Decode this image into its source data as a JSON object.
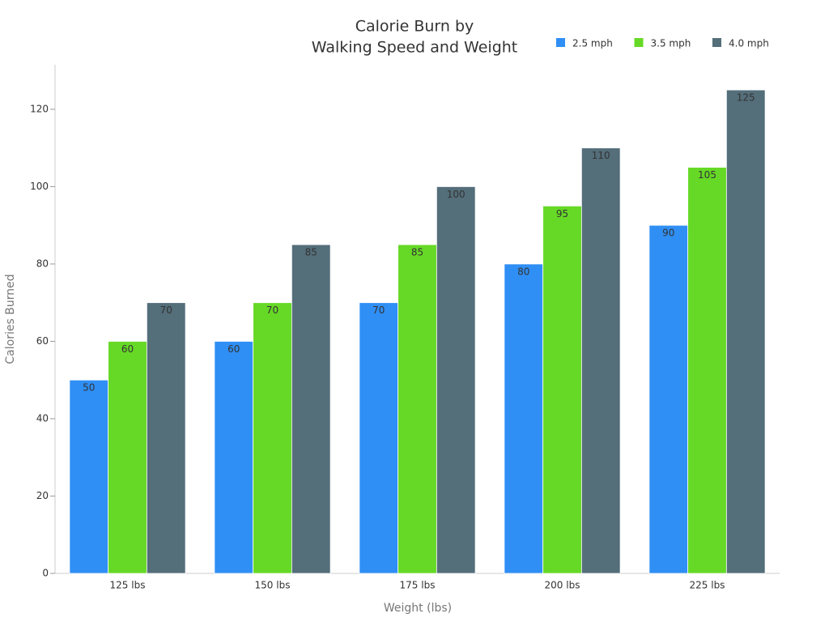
{
  "chart_data": {
    "type": "bar",
    "title": [
      "Calorie Burn by",
      "Walking Speed and Weight"
    ],
    "x_label": "Weight (lbs)",
    "y_label": "Calories Burned",
    "categories": [
      "125 lbs",
      "150 lbs",
      "175 lbs",
      "200 lbs",
      "225 lbs"
    ],
    "series": [
      {
        "name": "2.5 mph",
        "color": "#2f8ff5",
        "values": [
          50,
          60,
          70,
          80,
          90
        ]
      },
      {
        "name": "3.5 mph",
        "color": "#66d926",
        "values": [
          60,
          70,
          85,
          95,
          105
        ]
      },
      {
        "name": "4.0 mph",
        "color": "#546e7a",
        "values": [
          70,
          85,
          100,
          110,
          125
        ]
      }
    ],
    "ylim": [
      0,
      131.5
    ],
    "yticks": [
      0,
      20,
      40,
      60,
      80,
      100,
      120
    ],
    "legend": "top-right"
  }
}
